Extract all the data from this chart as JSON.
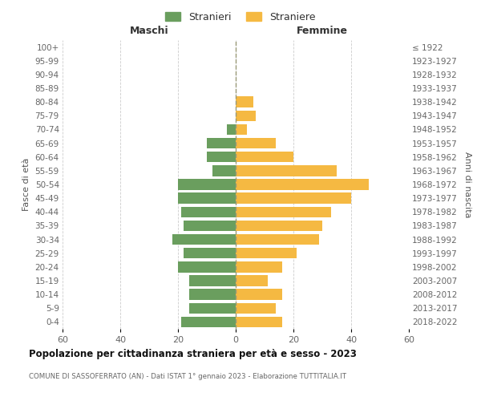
{
  "age_groups_bottom_to_top": [
    "0-4",
    "5-9",
    "10-14",
    "15-19",
    "20-24",
    "25-29",
    "30-34",
    "35-39",
    "40-44",
    "45-49",
    "50-54",
    "55-59",
    "60-64",
    "65-69",
    "70-74",
    "75-79",
    "80-84",
    "85-89",
    "90-94",
    "95-99",
    "100+"
  ],
  "birth_years_bottom_to_top": [
    "2018-2022",
    "2013-2017",
    "2008-2012",
    "2003-2007",
    "1998-2002",
    "1993-1997",
    "1988-1992",
    "1983-1987",
    "1978-1982",
    "1973-1977",
    "1968-1972",
    "1963-1967",
    "1958-1962",
    "1953-1957",
    "1948-1952",
    "1943-1947",
    "1938-1942",
    "1933-1937",
    "1928-1932",
    "1923-1927",
    "≤ 1922"
  ],
  "maschi_bottom_to_top": [
    19,
    16,
    16,
    16,
    20,
    18,
    22,
    18,
    19,
    20,
    20,
    8,
    10,
    10,
    3,
    0,
    0,
    0,
    0,
    0,
    0
  ],
  "femmine_bottom_to_top": [
    16,
    14,
    16,
    11,
    16,
    21,
    29,
    30,
    33,
    40,
    46,
    35,
    20,
    14,
    4,
    7,
    6,
    0,
    0,
    0,
    0
  ],
  "color_maschi": "#6a9e5e",
  "color_femmine": "#f5b942",
  "title": "Popolazione per cittadinanza straniera per età e sesso - 2023",
  "subtitle": "COMUNE DI SASSOFERRATO (AN) - Dati ISTAT 1° gennaio 2023 - Elaborazione TUTTITALIA.IT",
  "label_left": "Maschi",
  "label_right": "Femmine",
  "ylabel_left": "Fasce di età",
  "ylabel_right": "Anni di nascita",
  "legend_maschi": "Stranieri",
  "legend_femmine": "Straniere",
  "xlim": 60,
  "background_color": "#ffffff",
  "grid_color": "#cccccc"
}
